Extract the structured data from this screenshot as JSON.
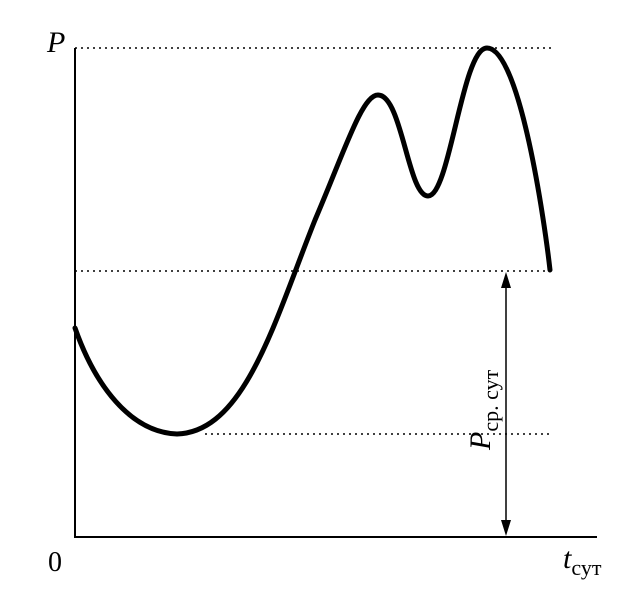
{
  "diagram": {
    "y_axis_label": "P",
    "x_axis_label": "t",
    "x_axis_label_sub": "сут",
    "origin_label": "0",
    "avg_label": "P",
    "avg_label_sub": "ср. сут"
  }
}
